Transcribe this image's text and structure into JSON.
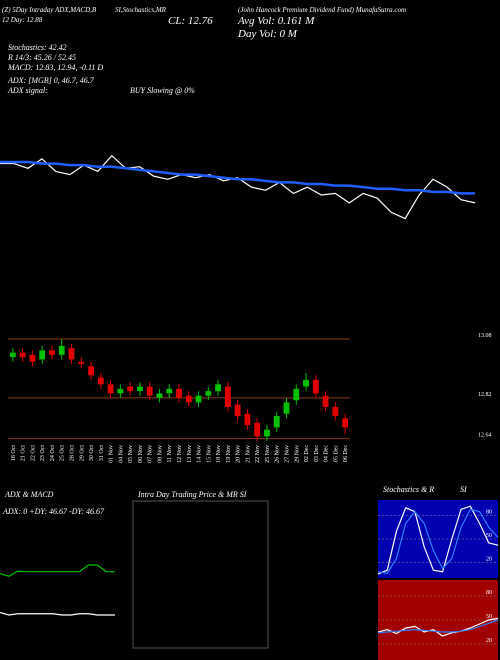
{
  "header": {
    "left1": "(Z) 5Day Intraday ADX,MACD,B",
    "left2": "12 Day: 12.88",
    "mid1": "SI,Stochastics,MR",
    "close": "CL: 12.76",
    "company": "(John Hancock Premium Dividend Fund) MunafaSutra.com",
    "avgvol": "Avg Vol: 0.161 M",
    "dayvol": "Day Vol: 0 M",
    "stoch": "Stochastics: 42.42",
    "r": "R 14/3: 45.26 / 52.45",
    "macd": "MACD: 12.83, 12.94, -0.11 D",
    "adx": "ADX: [MGB] 0, 46.7, 46.7",
    "adxsig": "ADX signal:",
    "buy": "BUY Slowing @ 0%",
    "intraday": "Intra Day Trading Price & MR SI"
  },
  "chart_data": [
    {
      "type": "line",
      "ylim": [
        12.5,
        13.2
      ],
      "series": [
        {
          "name": "Price",
          "color": "#ffffff",
          "values": [
            13.05,
            13.05,
            13.02,
            13.08,
            13.0,
            12.98,
            13.04,
            13.0,
            13.1,
            13.02,
            13.03,
            12.97,
            12.95,
            12.98,
            12.96,
            12.98,
            12.94,
            12.96,
            12.9,
            12.88,
            12.93,
            12.86,
            12.9,
            12.85,
            12.86,
            12.8,
            12.86,
            12.83,
            12.74,
            12.7,
            12.85,
            12.95,
            12.9,
            12.82,
            12.8
          ]
        },
        {
          "name": "MA",
          "color": "#1f5fff",
          "values": [
            13.06,
            13.06,
            13.06,
            13.05,
            13.05,
            13.04,
            13.04,
            13.03,
            13.03,
            13.02,
            13.01,
            13.0,
            12.99,
            12.98,
            12.98,
            12.97,
            12.96,
            12.95,
            12.95,
            12.94,
            12.93,
            12.93,
            12.92,
            12.92,
            12.91,
            12.91,
            12.9,
            12.89,
            12.89,
            12.88,
            12.88,
            12.87,
            12.87,
            12.86,
            12.86
          ]
        }
      ]
    },
    {
      "type": "candlestick",
      "ylim": [
        12.59,
        13.12
      ],
      "up_color": "#00c000",
      "down_color": "#e00000",
      "grid_color": "#8b3a1a",
      "yticks": [
        13.08,
        12.82,
        12.64
      ],
      "categories": [
        "18 Oct",
        "21 Oct",
        "22 Oct",
        "23 Oct",
        "24 Oct",
        "25 Oct",
        "28 Oct",
        "29 Oct",
        "30 Oct",
        "31 Oct",
        "01 Nov",
        "04 Nov",
        "05 Nov",
        "06 Nov",
        "07 Nov",
        "08 Nov",
        "11 Nov",
        "12 Nov",
        "13 Nov",
        "14 Nov",
        "15 Nov",
        "18 Nov",
        "19 Nov",
        "20 Nov",
        "21 Nov",
        "22 Nov",
        "25 Nov",
        "26 Nov",
        "27 Nov",
        "29 Nov",
        "02 Dec",
        "03 Dec",
        "04 Dec",
        "05 Dec",
        "06 Dec"
      ],
      "open": [
        13.0,
        13.02,
        13.01,
        12.99,
        13.03,
        13.01,
        13.04,
        12.98,
        12.96,
        12.91,
        12.88,
        12.84,
        12.87,
        12.85,
        12.87,
        12.82,
        12.84,
        12.86,
        12.83,
        12.8,
        12.83,
        12.85,
        12.87,
        12.79,
        12.75,
        12.71,
        12.65,
        12.69,
        12.75,
        12.81,
        12.87,
        12.9,
        12.83,
        12.78,
        12.73
      ],
      "high": [
        13.04,
        13.04,
        13.03,
        13.05,
        13.05,
        13.08,
        13.06,
        13.0,
        12.98,
        12.93,
        12.9,
        12.88,
        12.89,
        12.89,
        12.89,
        12.86,
        12.88,
        12.88,
        12.85,
        12.85,
        12.87,
        12.9,
        12.89,
        12.81,
        12.77,
        12.73,
        12.7,
        12.76,
        12.82,
        12.88,
        12.93,
        12.92,
        12.85,
        12.8,
        12.75
      ],
      "low": [
        12.98,
        12.98,
        12.96,
        12.97,
        12.99,
        12.99,
        12.97,
        12.95,
        12.9,
        12.86,
        12.82,
        12.82,
        12.83,
        12.83,
        12.81,
        12.8,
        12.82,
        12.8,
        12.78,
        12.78,
        12.81,
        12.83,
        12.76,
        12.72,
        12.68,
        12.63,
        12.63,
        12.67,
        12.73,
        12.79,
        12.85,
        12.82,
        12.76,
        12.72,
        12.66
      ],
      "close": [
        13.02,
        13.0,
        12.98,
        13.03,
        13.01,
        13.05,
        12.99,
        12.97,
        12.92,
        12.88,
        12.84,
        12.86,
        12.85,
        12.87,
        12.83,
        12.84,
        12.86,
        12.82,
        12.8,
        12.83,
        12.85,
        12.88,
        12.78,
        12.74,
        12.7,
        12.65,
        12.68,
        12.74,
        12.8,
        12.86,
        12.9,
        12.84,
        12.78,
        12.74,
        12.69
      ]
    },
    {
      "type": "line",
      "title": "ADX & MACD",
      "annotation": "ADX: 0 +DY: 46.67 -DY: 46.67",
      "ylim": [
        0,
        100
      ],
      "series": [
        {
          "name": "ADX",
          "color": "#00c000",
          "values": [
            45,
            43,
            47,
            46.67,
            46.67,
            46.67,
            46.67,
            46.67,
            46.67,
            46.67,
            52,
            52,
            46.67,
            46.67
          ]
        },
        {
          "name": "MACD",
          "color": "#ffffff",
          "values": [
            14,
            12,
            13,
            13,
            13,
            13,
            13,
            12,
            12,
            13,
            13,
            12,
            12,
            12
          ]
        }
      ]
    },
    {
      "type": "line",
      "title": "Stochastics & R",
      "title2": "SI",
      "ylim": [
        0,
        100
      ],
      "yticks": [
        80,
        50,
        20
      ],
      "background": "#0000b0",
      "series": [
        {
          "name": "%K",
          "color": "#ffffff",
          "values": [
            5,
            10,
            60,
            90,
            85,
            40,
            10,
            8,
            50,
            88,
            92,
            70,
            45,
            42
          ]
        },
        {
          "name": "%D",
          "color": "#2f7fff",
          "values": [
            8,
            6,
            25,
            70,
            85,
            70,
            35,
            12,
            25,
            65,
            88,
            85,
            65,
            52
          ]
        }
      ]
    },
    {
      "type": "line",
      "ylim": [
        0,
        100
      ],
      "yticks": [
        80,
        50,
        20
      ],
      "background": "#a00000",
      "series": [
        {
          "name": "RSI",
          "color": "#ffffff",
          "values": [
            35,
            38,
            33,
            40,
            42,
            35,
            38,
            30,
            34,
            36,
            40,
            45,
            50,
            52
          ]
        },
        {
          "name": "MRSI",
          "color": "#2f7fff",
          "values": [
            34,
            35,
            36,
            37,
            38,
            37,
            36,
            35,
            35,
            36,
            38,
            42,
            46,
            50
          ]
        }
      ]
    }
  ]
}
